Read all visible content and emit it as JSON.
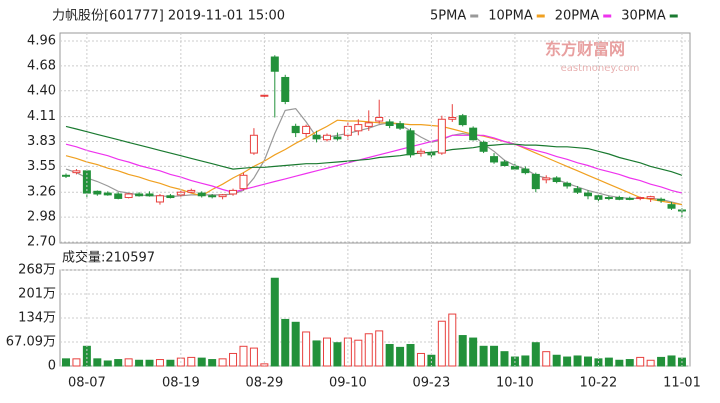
{
  "header": {
    "title": "力帆股份[601777] 2019-11-01 15:00"
  },
  "watermark": {
    "brand": "东方财富网",
    "site": "eastmoney.com"
  },
  "chart_data": [
    {
      "type": "candlestick",
      "up_color": "#e8403e",
      "down_color": "#22913a",
      "open": [
        3.45,
        3.48,
        3.5,
        3.27,
        3.25,
        3.24,
        3.2,
        3.24,
        3.24,
        3.15,
        3.22,
        3.23,
        3.26,
        3.25,
        3.22,
        3.21,
        3.24,
        3.3,
        3.7,
        4.35,
        4.78,
        4.55,
        4.0,
        3.92,
        3.9,
        3.85,
        3.88,
        3.9,
        3.95,
        4.0,
        4.06,
        4.05,
        4.03,
        3.95,
        3.7,
        3.7,
        3.7,
        4.08,
        4.12,
        3.98,
        3.82,
        3.66,
        3.6,
        3.55,
        3.52,
        3.46,
        3.4,
        3.42,
        3.36,
        3.3,
        3.25,
        3.22,
        3.2,
        3.2,
        3.19,
        3.19,
        3.19,
        3.18,
        3.12,
        3.06
      ],
      "high": [
        3.47,
        3.52,
        3.52,
        3.28,
        3.27,
        3.26,
        3.25,
        3.26,
        3.27,
        3.24,
        3.24,
        3.28,
        3.3,
        3.27,
        3.24,
        3.24,
        3.3,
        3.48,
        3.98,
        4.36,
        4.8,
        4.58,
        4.03,
        4.02,
        3.95,
        3.92,
        3.93,
        4.05,
        4.08,
        4.18,
        4.3,
        4.08,
        4.06,
        3.98,
        3.75,
        3.72,
        4.12,
        4.25,
        4.14,
        4.0,
        3.84,
        3.7,
        3.62,
        3.58,
        3.55,
        3.48,
        3.45,
        3.44,
        3.38,
        3.33,
        3.28,
        3.24,
        3.22,
        3.22,
        3.21,
        3.21,
        3.22,
        3.2,
        3.15,
        3.08
      ],
      "low": [
        3.42,
        3.46,
        3.2,
        3.22,
        3.22,
        3.18,
        3.19,
        3.21,
        3.21,
        3.12,
        3.19,
        3.21,
        3.25,
        3.2,
        3.19,
        3.18,
        3.22,
        3.28,
        3.68,
        4.33,
        4.1,
        4.25,
        3.88,
        3.88,
        3.82,
        3.83,
        3.84,
        3.85,
        3.9,
        3.95,
        4.03,
        3.98,
        3.96,
        3.65,
        3.66,
        3.64,
        3.68,
        4.05,
        4.0,
        3.84,
        3.7,
        3.58,
        3.55,
        3.5,
        3.46,
        3.26,
        3.36,
        3.36,
        3.3,
        3.24,
        3.18,
        3.14,
        3.17,
        3.17,
        3.17,
        3.17,
        3.15,
        3.14,
        3.06,
        2.98
      ],
      "close": [
        3.44,
        3.5,
        3.25,
        3.24,
        3.23,
        3.19,
        3.24,
        3.22,
        3.22,
        3.22,
        3.2,
        3.26,
        3.28,
        3.22,
        3.21,
        3.23,
        3.28,
        3.45,
        3.9,
        4.35,
        4.62,
        4.28,
        3.93,
        4.0,
        3.86,
        3.9,
        3.86,
        4.0,
        4.02,
        4.04,
        4.1,
        4.01,
        3.98,
        3.68,
        3.72,
        3.68,
        4.08,
        4.1,
        4.02,
        3.85,
        3.72,
        3.6,
        3.56,
        3.52,
        3.48,
        3.3,
        3.42,
        3.38,
        3.33,
        3.26,
        3.22,
        3.18,
        3.19,
        3.18,
        3.18,
        3.2,
        3.21,
        3.17,
        3.08,
        3.05
      ],
      "series": [
        {
          "name": "5PMA",
          "color": "#999999",
          "values": [
            3.52,
            3.48,
            3.42,
            3.38,
            3.33,
            3.27,
            3.25,
            3.23,
            3.22,
            3.22,
            3.21,
            3.22,
            3.23,
            3.23,
            3.23,
            3.23,
            3.24,
            3.28,
            3.42,
            3.62,
            3.92,
            4.18,
            4.2,
            4.05,
            3.88,
            3.88,
            3.9,
            3.92,
            3.95,
            3.98,
            4.02,
            4.04,
            4.02,
            3.95,
            3.88,
            3.82,
            3.85,
            3.9,
            3.92,
            3.9,
            3.8,
            3.72,
            3.62,
            3.56,
            3.52,
            3.45,
            3.42,
            3.4,
            3.36,
            3.32,
            3.28,
            3.25,
            3.22,
            3.2,
            3.19,
            3.19,
            3.19,
            3.18,
            3.15,
            3.12
          ]
        },
        {
          "name": "10PMA",
          "color": "#f0a020",
          "values": [
            3.67,
            3.64,
            3.6,
            3.57,
            3.53,
            3.5,
            3.46,
            3.43,
            3.39,
            3.36,
            3.32,
            3.29,
            3.25,
            3.22,
            3.29,
            3.35,
            3.42,
            3.48,
            3.55,
            3.61,
            3.68,
            3.74,
            3.81,
            3.87,
            3.94,
            4.0,
            4.07,
            4.06,
            4.06,
            4.05,
            4.04,
            4.04,
            4.03,
            4.02,
            4.02,
            4.01,
            4.0,
            3.97,
            3.94,
            3.91,
            3.89,
            3.86,
            3.83,
            3.8,
            3.75,
            3.7,
            3.65,
            3.6,
            3.55,
            3.5,
            3.45,
            3.4,
            3.35,
            3.3,
            3.25,
            3.2,
            3.18,
            3.16,
            3.14,
            3.12
          ]
        },
        {
          "name": "20PMA",
          "color": "#ee33ee",
          "values": [
            3.8,
            3.77,
            3.73,
            3.7,
            3.67,
            3.63,
            3.6,
            3.56,
            3.53,
            3.5,
            3.46,
            3.43,
            3.39,
            3.36,
            3.33,
            3.29,
            3.26,
            3.29,
            3.32,
            3.35,
            3.38,
            3.41,
            3.44,
            3.47,
            3.5,
            3.53,
            3.56,
            3.59,
            3.62,
            3.65,
            3.68,
            3.71,
            3.74,
            3.77,
            3.8,
            3.83,
            3.86,
            3.9,
            3.9,
            3.9,
            3.9,
            3.87,
            3.83,
            3.8,
            3.76,
            3.73,
            3.7,
            3.66,
            3.63,
            3.59,
            3.56,
            3.52,
            3.49,
            3.46,
            3.42,
            3.39,
            3.35,
            3.32,
            3.28,
            3.25
          ]
        },
        {
          "name": "30PMA",
          "color": "#1a7a30",
          "values": [
            4.0,
            3.97,
            3.94,
            3.91,
            3.88,
            3.85,
            3.82,
            3.79,
            3.76,
            3.73,
            3.7,
            3.67,
            3.64,
            3.61,
            3.58,
            3.55,
            3.52,
            3.53,
            3.54,
            3.54,
            3.55,
            3.56,
            3.57,
            3.58,
            3.58,
            3.59,
            3.6,
            3.61,
            3.62,
            3.63,
            3.65,
            3.66,
            3.67,
            3.69,
            3.7,
            3.71,
            3.72,
            3.74,
            3.75,
            3.76,
            3.78,
            3.79,
            3.8,
            3.8,
            3.79,
            3.79,
            3.78,
            3.77,
            3.77,
            3.76,
            3.75,
            3.72,
            3.69,
            3.65,
            3.62,
            3.59,
            3.55,
            3.52,
            3.49,
            3.45
          ]
        }
      ],
      "ylim": [
        2.7,
        4.96
      ],
      "yticks": [
        {
          "value": 2.7,
          "label": "2.70"
        },
        2.98,
        3.26,
        3.55,
        3.83,
        4.11,
        {
          "value": 4.4,
          "label": "4.40"
        },
        4.68,
        4.96
      ],
      "grid": true
    },
    {
      "type": "bar",
      "title": "成交量:210597",
      "categories": [
        null,
        null,
        "08-07",
        null,
        null,
        null,
        null,
        null,
        null,
        null,
        null,
        "08-19",
        null,
        null,
        null,
        null,
        null,
        null,
        null,
        "08-29",
        null,
        null,
        null,
        null,
        null,
        null,
        null,
        "09-10",
        null,
        null,
        null,
        null,
        null,
        null,
        null,
        "09-23",
        null,
        null,
        null,
        null,
        null,
        null,
        null,
        "10-10",
        null,
        null,
        null,
        null,
        null,
        null,
        null,
        "10-22",
        null,
        null,
        null,
        null,
        null,
        null,
        null,
        "11-01"
      ],
      "values": [
        20,
        20,
        55,
        20,
        14,
        18,
        20,
        16,
        16,
        18,
        16,
        22,
        24,
        22,
        18,
        20,
        35,
        55,
        50,
        6,
        245,
        130,
        122,
        95,
        70,
        78,
        65,
        78,
        72,
        90,
        98,
        60,
        52,
        60,
        35,
        30,
        125,
        145,
        85,
        78,
        55,
        55,
        40,
        25,
        28,
        65,
        40,
        30,
        25,
        28,
        25,
        20,
        22,
        16,
        18,
        24,
        16,
        24,
        28,
        22
      ],
      "ylim": [
        0,
        268
      ],
      "yticks": [
        0,
        {
          "value": 67.09,
          "label": "67.09万"
        },
        {
          "value": 134,
          "label": "134万"
        },
        {
          "value": 201,
          "label": "201万"
        },
        {
          "value": 268,
          "label": "268万"
        }
      ],
      "grid": true
    }
  ]
}
